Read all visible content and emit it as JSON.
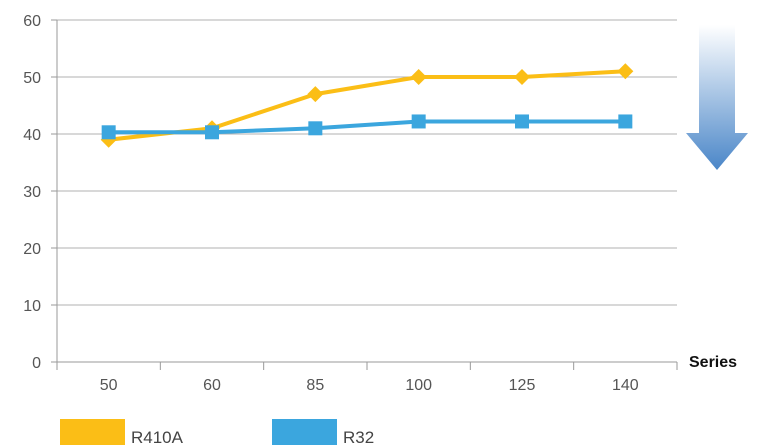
{
  "chart_data": {
    "type": "line",
    "categories": [
      "50",
      "60",
      "85",
      "100",
      "125",
      "140"
    ],
    "series": [
      {
        "name": "R410A",
        "values": [
          39,
          41,
          47,
          50,
          50,
          51
        ],
        "color": "#FBBE16",
        "marker": "diamond"
      },
      {
        "name": "R32",
        "values": [
          40.3,
          40.3,
          41,
          42.2,
          42.2,
          42.2
        ],
        "color": "#3BA6DE",
        "marker": "square"
      }
    ],
    "xlabel": "Series",
    "ylim": [
      0,
      60
    ],
    "yticks": [
      0,
      10,
      20,
      30,
      40,
      50,
      60
    ],
    "grid": true,
    "legend_position": "bottom-left",
    "annotation": {
      "type": "down-arrow",
      "color": "#4A86C8"
    }
  }
}
